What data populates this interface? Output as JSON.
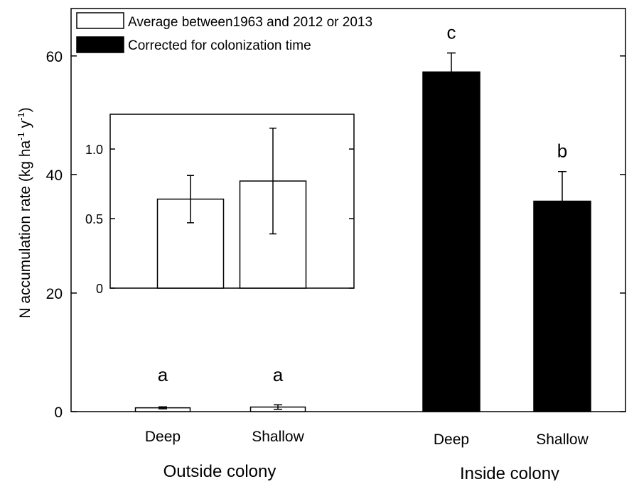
{
  "chart_data": [
    {
      "type": "bar",
      "ylabel": "N accumulation rate (kg ha",
      "ylabel_sup1": "-1",
      "ylabel_mid": " y",
      "ylabel_sup2": "-1",
      "ylabel_end": ")",
      "ylim": [
        0,
        68
      ],
      "yticks": [
        0,
        20,
        40,
        60
      ],
      "groups": [
        "Outside colony",
        "Inside colony"
      ],
      "categories": [
        "Deep",
        "Shallow",
        "Deep",
        "Shallow"
      ],
      "series": [
        {
          "name": "Average between1963 and 2012 or 2013",
          "color": "#ffffff",
          "values": [
            0.64,
            0.77,
            null,
            null
          ],
          "errors": [
            0.17,
            0.38,
            null,
            null
          ]
        },
        {
          "name": "Corrected for colonization time",
          "color": "#000000",
          "values": [
            null,
            null,
            57.3,
            35.5
          ],
          "errors": [
            null,
            null,
            3.2,
            5.0
          ]
        }
      ],
      "significance_letters": [
        "a",
        "a",
        "c",
        "b"
      ],
      "legend": "top-left"
    },
    {
      "type": "bar",
      "inset_of": "main",
      "ylim": [
        0,
        1.25
      ],
      "yticks": [
        "0",
        "0.5",
        "1.0"
      ],
      "values": [
        0.64,
        0.77
      ],
      "errors": [
        0.17,
        0.38
      ]
    }
  ]
}
